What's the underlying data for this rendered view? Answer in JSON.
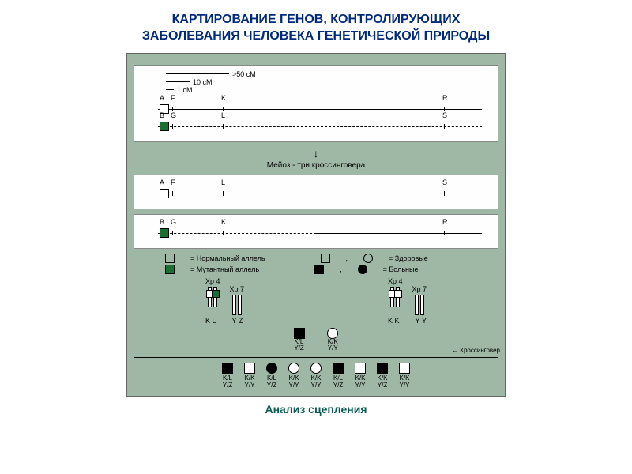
{
  "title": {
    "line1": "КАРТИРОВАНИЕ ГЕНОВ, КОНТРОЛИРУЮЩИХ",
    "line2": "ЗАБОЛЕВАНИЯ ЧЕЛОВЕКА ГЕНЕТИЧЕСКОЙ ПРИРОДЫ",
    "color": "#002a7a"
  },
  "caption": {
    "text": "Анализ сцепления",
    "color": "#0b5c52"
  },
  "diagram": {
    "bg": "#9fb8a6",
    "scale": {
      "u1": ">50 cM",
      "u2": "10 cM",
      "u3": "1 cM"
    },
    "chrom1": {
      "top": {
        "a": "A",
        "f": "F",
        "k": "K",
        "r": "R"
      },
      "bot": {
        "b": "B",
        "g": "G",
        "l": "L",
        "s": "S"
      }
    },
    "meiosis": "Мейоз - три кроссинговера",
    "chrom2": {
      "a": "A",
      "f": "F",
      "l": "L",
      "s": "S"
    },
    "chrom3": {
      "b": "B",
      "g": "G",
      "k": "K",
      "r": "R"
    },
    "legend": {
      "normal_allele": "= Нормальный аллель",
      "mutant_allele": "= Мутантный аллель",
      "healthy": "= Здоровые",
      "sick": "= Больные"
    },
    "pedigree": {
      "xp4": "Xp 4",
      "xp7": "Xp 7",
      "k": "K",
      "l": "L",
      "y": "Y",
      "z": "Z",
      "p1": "K/L\nY/Z",
      "p2": "K/K\nY/Y",
      "crossover": "Кроссинговер",
      "offspring": [
        {
          "sym": "sq-fill",
          "g": "K/L\nY/Z"
        },
        {
          "sym": "sq",
          "g": "K/K\nY/Y"
        },
        {
          "sym": "ci-fill",
          "g": "K/L\nY/Z"
        },
        {
          "sym": "ci",
          "g": "K/K\nY/Y"
        },
        {
          "sym": "ci",
          "g": "K/K\nY/Y"
        },
        {
          "sym": "sq-fill",
          "g": "K/L\nY/Z"
        },
        {
          "sym": "sq",
          "g": "K/K\nY/Y"
        },
        {
          "sym": "sq-fill",
          "g": "K/K\nY/Z"
        },
        {
          "sym": "sq",
          "g": "K/K\nY/Y"
        }
      ]
    }
  }
}
